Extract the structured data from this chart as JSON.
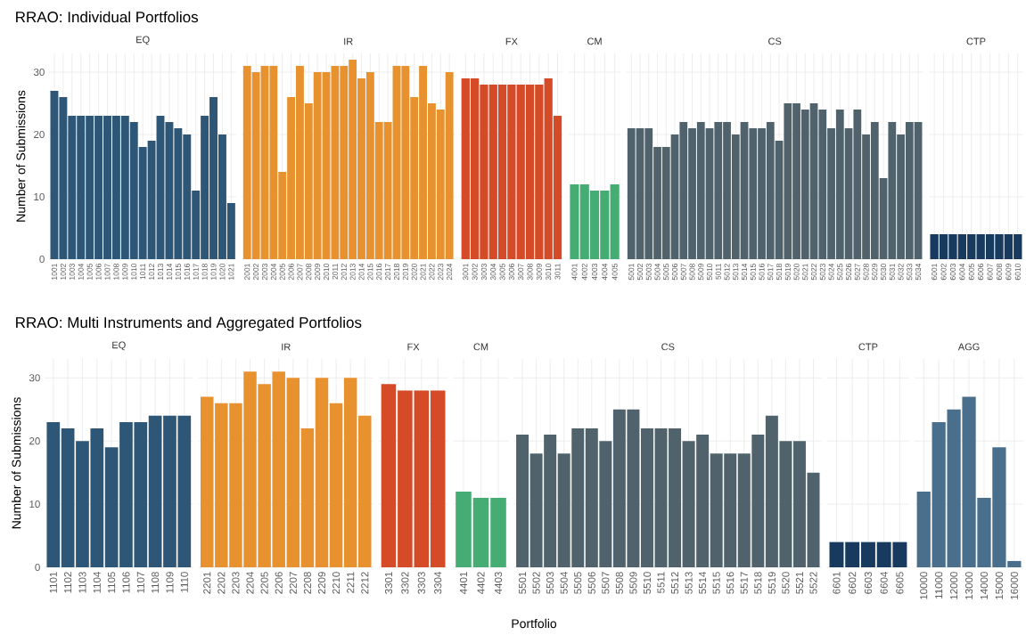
{
  "chart_data": [
    {
      "type": "bar",
      "title": "RRAO: Individual Portfolios",
      "subtitle": "EQ",
      "ylabel": "Number of Submissions",
      "categories": [
        "1001",
        "1002",
        "1003",
        "1004",
        "1005",
        "1006",
        "1007",
        "1008",
        "1009",
        "1010",
        "1011",
        "1012",
        "1013",
        "1014",
        "1015",
        "1016",
        "1017",
        "1018",
        "1019",
        "1020",
        "1021"
      ],
      "values": [
        27,
        26,
        23,
        23,
        23,
        23,
        23,
        23,
        23,
        22,
        18,
        19,
        23,
        22,
        21,
        20,
        11,
        23,
        26,
        20,
        9
      ],
      "color": "#2e5676",
      "ylim": [
        0,
        33
      ],
      "yticks": [
        0,
        10,
        20,
        30
      ],
      "grid": true
    },
    {
      "type": "bar",
      "subtitle": "IR",
      "categories": [
        "2001",
        "2002",
        "2003",
        "2004",
        "2005",
        "2006",
        "2007",
        "2008",
        "2009",
        "2010",
        "2011",
        "2012",
        "2013",
        "2014",
        "2015",
        "2016",
        "2017",
        "2018",
        "2019",
        "2020",
        "2021",
        "2022",
        "2023",
        "2024"
      ],
      "values": [
        31,
        30,
        31,
        31,
        14,
        26,
        31,
        25,
        30,
        30,
        31,
        31,
        32,
        29,
        30,
        22,
        22,
        31,
        31,
        26,
        31,
        25,
        24,
        30
      ],
      "color": "#e8922f",
      "ylim": [
        0,
        33
      ],
      "yticks": [
        0,
        10,
        20,
        30
      ],
      "grid": true,
      "tick_labels": "x"
    },
    {
      "type": "bar",
      "subtitle": "FX",
      "categories": [
        "3001",
        "3002",
        "3003",
        "3004",
        "3005",
        "3006",
        "3007",
        "3008",
        "3009",
        "3010",
        "3011"
      ],
      "values": [
        29,
        29,
        28,
        28,
        28,
        28,
        28,
        28,
        28,
        29,
        23
      ],
      "color": "#d54b27",
      "ylim": [
        0,
        33
      ],
      "yticks": [
        0,
        10,
        20,
        30
      ],
      "grid": true,
      "tick_labels": "x"
    },
    {
      "type": "bar",
      "subtitle": "CM",
      "categories": [
        "4001",
        "4002",
        "4003",
        "4004",
        "4005"
      ],
      "values": [
        12,
        12,
        11,
        11,
        12
      ],
      "color": "#45ad73",
      "ylim": [
        0,
        33
      ],
      "yticks": [
        0,
        10,
        20,
        30
      ],
      "grid": true,
      "tick_labels": "x"
    },
    {
      "type": "bar",
      "subtitle": "CS",
      "categories": [
        "5001",
        "5002",
        "5003",
        "5004",
        "5005",
        "5006",
        "5007",
        "5008",
        "5009",
        "5010",
        "5011",
        "5012",
        "5013",
        "5014",
        "5015",
        "5016",
        "5017",
        "5018",
        "5019",
        "5020",
        "5021",
        "5022",
        "5023",
        "5024",
        "5025",
        "5026",
        "5027",
        "5028",
        "5029",
        "5030",
        "5031",
        "5032",
        "5033",
        "5034"
      ],
      "values": [
        21,
        21,
        21,
        18,
        18,
        20,
        22,
        21,
        22,
        21,
        22,
        22,
        20,
        22,
        21,
        21,
        22,
        19,
        25,
        25,
        24,
        25,
        24,
        21,
        24,
        21,
        24,
        20,
        22,
        13,
        22,
        20,
        22,
        22
      ],
      "color": "#50636c",
      "ylim": [
        0,
        33
      ],
      "yticks": [
        0,
        10,
        20,
        30
      ],
      "grid": true,
      "tick_labels": "x"
    },
    {
      "type": "bar",
      "subtitle": "CTP",
      "categories": [
        "6001",
        "6002",
        "6003",
        "6004",
        "6005",
        "6006",
        "6007",
        "6008",
        "6009",
        "6010"
      ],
      "values": [
        4,
        4,
        4,
        4,
        4,
        4,
        4,
        4,
        4,
        4
      ],
      "color": "#173a5e",
      "ylim": [
        0,
        33
      ],
      "yticks": [
        0,
        10,
        20,
        30
      ],
      "grid": true,
      "tick_labels": "x"
    },
    {
      "type": "bar",
      "title": "RRAO: Multi Instruments and Aggregated Portfolios",
      "subtitle": "EQ",
      "ylabel": "Number of Submissions",
      "categories": [
        "1101",
        "1102",
        "1103",
        "1104",
        "1105",
        "1106",
        "1107",
        "1108",
        "1109",
        "1110"
      ],
      "values": [
        23,
        22,
        20,
        22,
        19,
        23,
        23,
        24,
        24,
        24
      ],
      "color": "#2e5676",
      "ylim": [
        0,
        33
      ],
      "yticks": [
        0,
        10,
        20,
        30
      ],
      "grid": true
    },
    {
      "type": "bar",
      "subtitle": "IR",
      "categories": [
        "2201",
        "2202",
        "2203",
        "2204",
        "2205",
        "2206",
        "2207",
        "2208",
        "2209",
        "2210",
        "2211",
        "2212"
      ],
      "values": [
        27,
        26,
        26,
        31,
        29,
        31,
        30,
        22,
        30,
        26,
        30,
        24
      ],
      "color": "#e8922f",
      "ylim": [
        0,
        33
      ],
      "yticks": [
        0,
        10,
        20,
        30
      ],
      "grid": true,
      "tick_labels": "x"
    },
    {
      "type": "bar",
      "subtitle": "FX",
      "categories": [
        "3301",
        "3302",
        "3303",
        "3304"
      ],
      "values": [
        29,
        28,
        28,
        28
      ],
      "color": "#d54b27",
      "ylim": [
        0,
        33
      ],
      "yticks": [
        0,
        10,
        20,
        30
      ],
      "grid": true,
      "tick_labels": "x"
    },
    {
      "type": "bar",
      "subtitle": "CM",
      "categories": [
        "4401",
        "4402",
        "4403"
      ],
      "values": [
        12,
        11,
        11
      ],
      "color": "#45ad73",
      "ylim": [
        0,
        33
      ],
      "yticks": [
        0,
        10,
        20,
        30
      ],
      "grid": true,
      "tick_labels": "x"
    },
    {
      "type": "bar",
      "subtitle": "CS",
      "xlabel": "Portfolio",
      "categories": [
        "5501",
        "5502",
        "5503",
        "5504",
        "5505",
        "5506",
        "5507",
        "5508",
        "5509",
        "5510",
        "5511",
        "5512",
        "5513",
        "5514",
        "5515",
        "5516",
        "5517",
        "5518",
        "5519",
        "5520",
        "5521",
        "5522"
      ],
      "values": [
        21,
        18,
        21,
        18,
        22,
        22,
        20,
        25,
        25,
        22,
        22,
        22,
        20,
        21,
        18,
        18,
        18,
        21,
        24,
        20,
        20,
        15
      ],
      "color": "#50636c",
      "ylim": [
        0,
        33
      ],
      "yticks": [
        0,
        10,
        20,
        30
      ],
      "grid": true,
      "tick_labels": "x"
    },
    {
      "type": "bar",
      "subtitle": "CTP",
      "categories": [
        "6601",
        "6602",
        "6603",
        "6604",
        "6605"
      ],
      "values": [
        4,
        4,
        4,
        4,
        4
      ],
      "color": "#173a5e",
      "ylim": [
        0,
        33
      ],
      "yticks": [
        0,
        10,
        20,
        30
      ],
      "grid": true,
      "tick_labels": "x"
    },
    {
      "type": "bar",
      "subtitle": "AGG",
      "categories": [
        "10000",
        "11000",
        "12000",
        "13000",
        "14000",
        "15000",
        "16000"
      ],
      "values": [
        12,
        23,
        25,
        27,
        11,
        19,
        1
      ],
      "color": "#4a6f8d",
      "ylim": [
        0,
        33
      ],
      "yticks": [
        0,
        10,
        20,
        30
      ],
      "grid": true,
      "tick_labels": "x"
    }
  ]
}
